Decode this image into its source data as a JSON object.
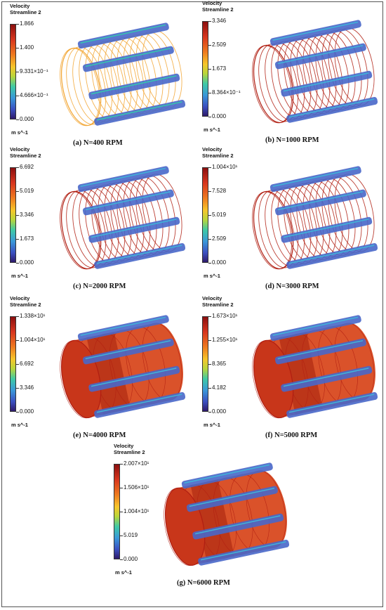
{
  "legend_title_line1": "Velocity",
  "legend_title_line2": "Streamline 2",
  "unit": "m s^-1",
  "panels": [
    {
      "caption": "(a) N=400 RPM",
      "ticks": [
        "1.866",
        "1.400",
        "9.331×10⁻¹",
        "4.666×10⁻¹",
        "0.000"
      ],
      "style": "sparse"
    },
    {
      "caption": "(b) N=1000 RPM",
      "ticks": [
        "3.346",
        "2.509",
        "1.673",
        "8.364×10⁻¹",
        "0.000"
      ],
      "style": "red-lines"
    },
    {
      "caption": "(c) N=2000 RPM",
      "ticks": [
        "6.692",
        "5.019",
        "3.346",
        "1.673",
        "0.000"
      ],
      "style": "red-lines"
    },
    {
      "caption": "(d) N=3000 RPM",
      "ticks": [
        "1.004×10¹",
        "7.528",
        "5.019",
        "2.509",
        "0.000"
      ],
      "style": "red-lines"
    },
    {
      "caption": "(e) N=4000 RPM",
      "ticks": [
        "1.338×10¹",
        "1.004×10¹",
        "6.692",
        "3.346",
        "0.000"
      ],
      "style": "solid"
    },
    {
      "caption": "(f) N=5000 RPM",
      "ticks": [
        "1.673×10¹",
        "1.255×10¹",
        "8.365",
        "4.182",
        "0.000"
      ],
      "style": "solid"
    },
    {
      "caption": "(g) N=6000 RPM",
      "ticks": [
        "2.007×10¹",
        "1.506×10¹",
        "1.004×10¹",
        "5.019",
        "0.000"
      ],
      "style": "solid"
    }
  ]
}
